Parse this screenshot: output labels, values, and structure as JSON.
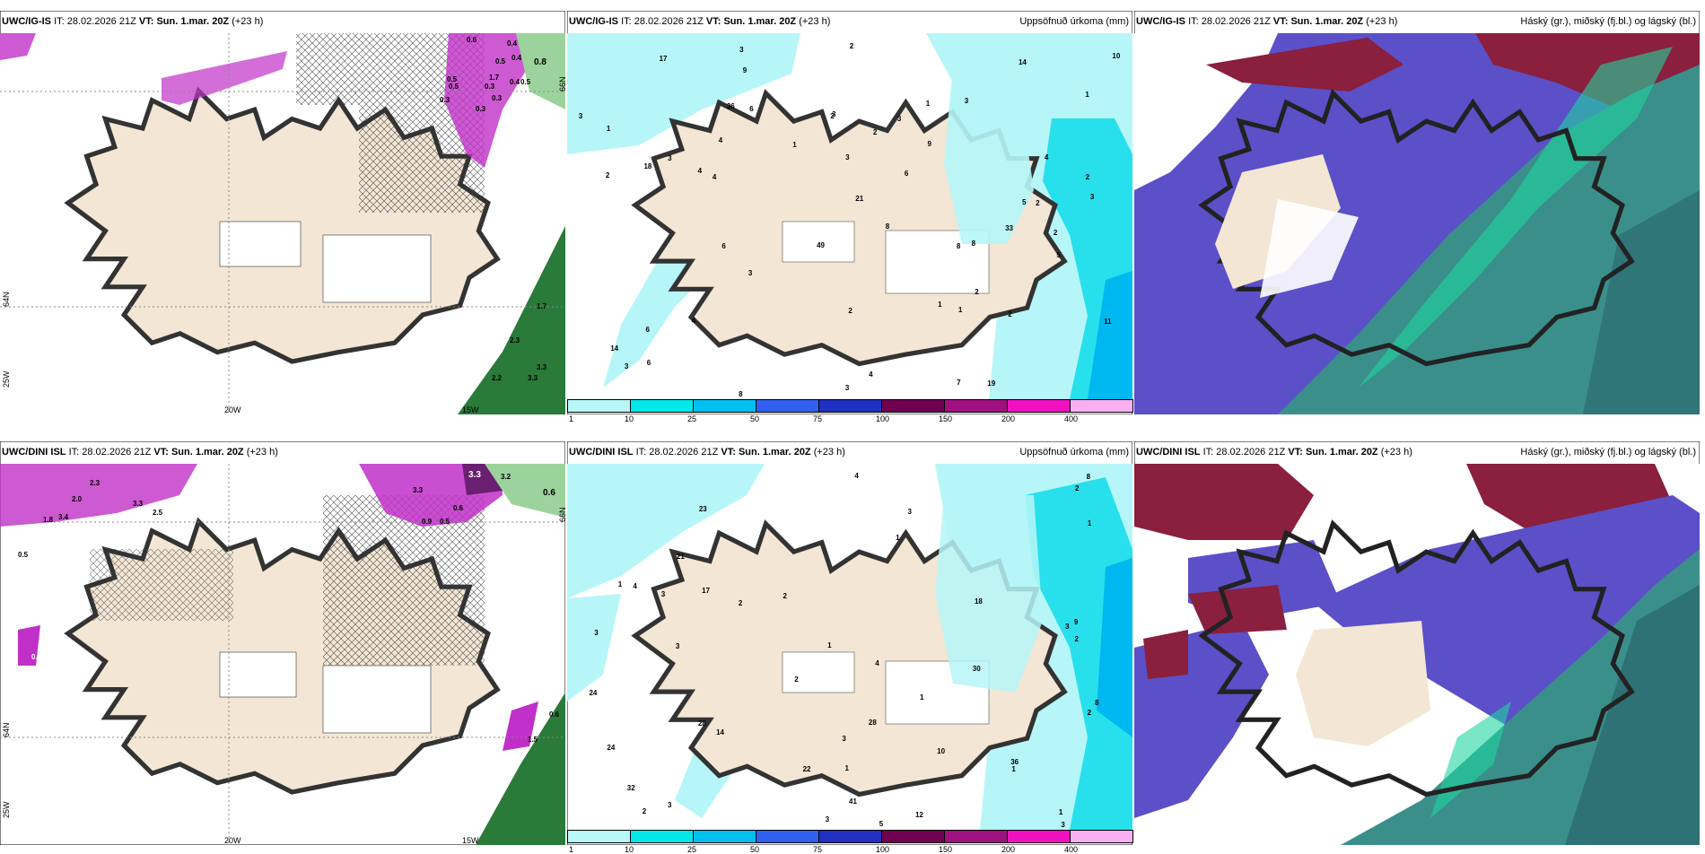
{
  "panels": [
    {
      "model": "UWC/IG-IS",
      "it_label": "IT:",
      "it": "28.02.2026 21Z",
      "vt_label": "VT:",
      "vt": "Sun. 1.mar. 20Z",
      "lead": "(+23 h)",
      "right_title": ""
    },
    {
      "model": "UWC/IG-IS",
      "it_label": "IT:",
      "it": "28.02.2026 21Z",
      "vt_label": "VT:",
      "vt": "Sun. 1.mar. 20Z",
      "lead": "(+23 h)",
      "right_title": "Uppsöfnuð úrkoma (mm)"
    },
    {
      "model": "UWC/IG-IS",
      "it_label": "IT:",
      "it": "28.02.2026 21Z",
      "vt_label": "VT:",
      "vt": "Sun. 1.mar. 20Z",
      "lead": "(+23 h)",
      "right_title": "Háský (gr.), miðský (fj.bl.) og lágský (bl.)"
    },
    {
      "model": "UWC/DINI ISL",
      "it_label": "IT:",
      "it": "28.02.2026 21Z",
      "vt_label": "VT:",
      "vt": "Sun. 1.mar. 20Z",
      "lead": "(+23 h)",
      "right_title": ""
    },
    {
      "model": "UWC/DINI ISL",
      "it_label": "IT:",
      "it": "28.02.2026 21Z",
      "vt_label": "VT:",
      "vt": "Sun. 1.mar. 20Z",
      "lead": "(+23 h)",
      "right_title": "Uppsöfnuð úrkoma (mm)"
    },
    {
      "model": "UWC/DINI ISL",
      "it_label": "IT:",
      "it": "28.02.2026 21Z",
      "vt_label": "VT:",
      "vt": "Sun. 1.mar. 20Z",
      "lead": "(+23 h)",
      "right_title": "Háský (gr.), miðský (fj.bl.) og lágský (bl.)"
    }
  ],
  "axis_labels": {
    "lon_20w": "20W",
    "lon_15w": "15W",
    "lon_25w": "25W",
    "lat_64n": "64N",
    "lat_66n": "66N"
  },
  "colorbar": {
    "ticks": [
      "1",
      "10",
      "25",
      "50",
      "75",
      "100",
      "150",
      "200",
      "400"
    ],
    "colors": [
      "#b8f8f8",
      "#00e8e8",
      "#00c0f0",
      "#3060f0",
      "#2030c0",
      "#700050",
      "#a01080",
      "#f010c0",
      "#f8b0f0"
    ]
  },
  "precip_values": {
    "top": [
      "7",
      "4",
      "2",
      "6",
      "5",
      "6",
      "3",
      "1",
      "2",
      "3",
      "2",
      "5",
      "3",
      "4",
      "8",
      "6",
      "3",
      "2",
      "9",
      "3",
      "21",
      "3",
      "19",
      "14",
      "3",
      "17",
      "14",
      "3",
      "11",
      "18",
      "3",
      "8",
      "9",
      "33",
      "6",
      "8",
      "4",
      "1",
      "1",
      "1",
      "8",
      "2",
      "2",
      "3",
      "2",
      "1",
      "2",
      "3",
      "1",
      "2",
      "2",
      "6",
      "4",
      "4",
      "4",
      "10",
      "49",
      "36"
    ],
    "bottom": [
      "4",
      "3",
      "4",
      "3",
      "9",
      "3",
      "3",
      "10",
      "17",
      "3",
      "18",
      "1",
      "1",
      "1",
      "24",
      "28",
      "3",
      "2",
      "30",
      "28",
      "4",
      "1",
      "2",
      "36",
      "32",
      "3",
      "3",
      "2",
      "12",
      "2",
      "1",
      "2",
      "41",
      "5",
      "8",
      "1",
      "3",
      "1",
      "14",
      "2",
      "1",
      "2",
      "8",
      "23",
      "22",
      "24",
      "21"
    ]
  },
  "wind_values": {
    "top": [
      "0.6",
      "0.4",
      "0.5",
      "0.4",
      "0.8",
      "1.7",
      "0.5",
      "0.4",
      "0.3",
      "0.3",
      "0.3",
      "0.5",
      "0.3",
      "0.5",
      "1.7",
      "2.3",
      "3.3",
      "3.3",
      "2.2"
    ],
    "bottom": [
      "3.3",
      "3.2",
      "0.6",
      "2.3",
      "2.0",
      "3.3",
      "2.5",
      "3.4",
      "1.8",
      "0.5",
      "0.6",
      "3.3",
      "0.5",
      "0.6",
      "1.5",
      "0.9",
      "0.5"
    ]
  },
  "colors": {
    "land": "#f3e6d4",
    "sea_light": "#b6f6f8",
    "sea_mid": "#28e0ec",
    "sea_dark": "#00b8f0",
    "mag": "#c030c8",
    "green": "#2a7a3a",
    "teal": "#3a8f8a",
    "purple": "#5b50c8",
    "maroon": "#8a1f3e"
  }
}
